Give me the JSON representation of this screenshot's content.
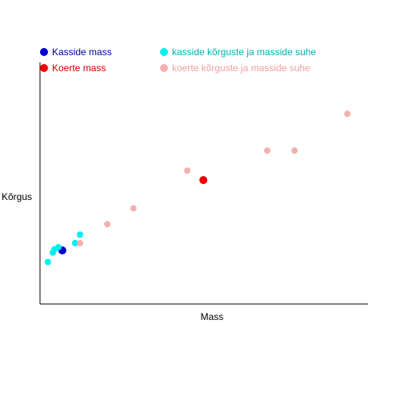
{
  "chart_data": {
    "type": "scatter",
    "title": "",
    "xlabel": "Mass",
    "ylabel": "Kõrgus",
    "xlim": [
      0,
      1
    ],
    "ylim": [
      0,
      1
    ],
    "grid": false,
    "legend_placement": "top",
    "series": [
      {
        "name": "Kasside mass",
        "color": "#0000cc",
        "legend_text_color": "#000099",
        "marker": "large",
        "points": [
          [
            0.068,
            0.222
          ]
        ]
      },
      {
        "name": "Koerte mass",
        "color": "#ee0000",
        "legend_text_color": "#cc0000",
        "marker": "large",
        "points": [
          [
            0.498,
            0.513
          ]
        ]
      },
      {
        "name": "kasside kõrguste ja masside suhe",
        "color": "#00f0f0",
        "legend_text_color": "#00b0b0",
        "marker": "small",
        "points": [
          [
            0.024,
            0.174
          ],
          [
            0.039,
            0.213
          ],
          [
            0.044,
            0.226
          ],
          [
            0.056,
            0.235
          ],
          [
            0.107,
            0.252
          ],
          [
            0.122,
            0.287
          ]
        ]
      },
      {
        "name": "koerte kõrguste ja masside suhe",
        "color": "#f4b0b0",
        "legend_text_color": "#f0a0a0",
        "marker": "small",
        "points": [
          [
            0.122,
            0.252
          ],
          [
            0.205,
            0.33
          ],
          [
            0.285,
            0.396
          ],
          [
            0.449,
            0.552
          ],
          [
            0.693,
            0.635
          ],
          [
            0.776,
            0.635
          ],
          [
            0.937,
            0.787
          ]
        ]
      }
    ]
  }
}
